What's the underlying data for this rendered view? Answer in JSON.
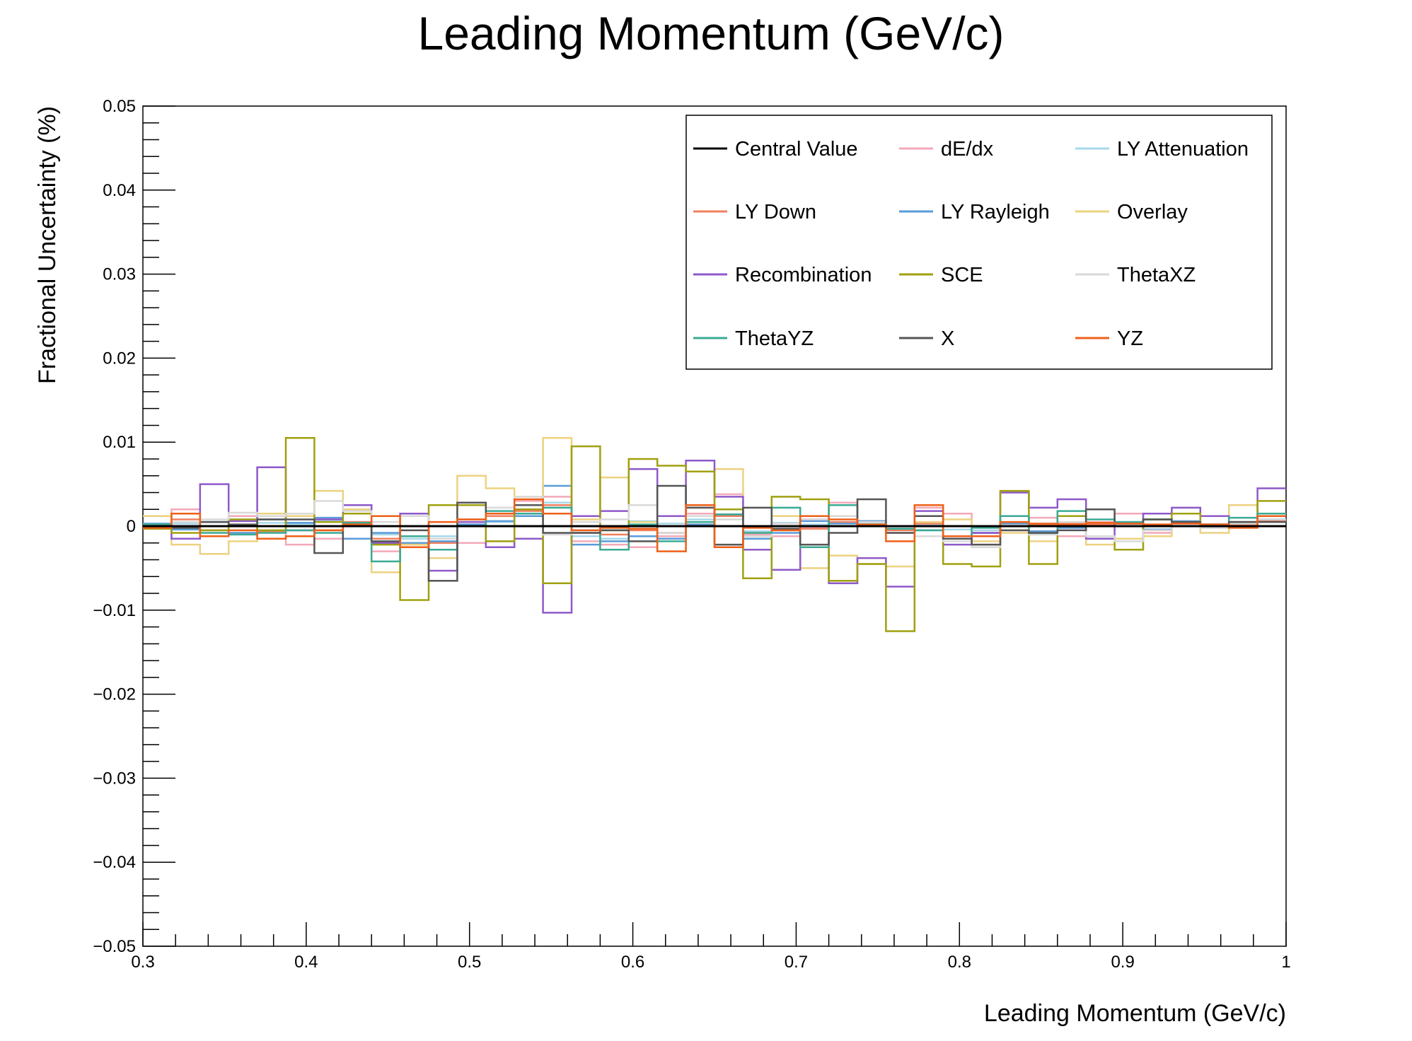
{
  "chart_data": {
    "type": "line",
    "title": "Leading Momentum (GeV/c)",
    "xlabel": "Leading Momentum (GeV/c)",
    "ylabel": "Fractional Uncertainty (%)",
    "xlim": [
      0.3,
      1.0
    ],
    "ylim": [
      -0.05,
      0.05
    ],
    "x_ticks": [
      0.3,
      0.4,
      0.5,
      0.6,
      0.7,
      0.8,
      0.9,
      1.0
    ],
    "x_tick_labels": [
      "0.3",
      "0.4",
      "0.5",
      "0.6",
      "0.7",
      "0.8",
      "0.9",
      "1"
    ],
    "y_ticks": [
      -0.05,
      -0.04,
      -0.03,
      -0.02,
      -0.01,
      0,
      0.01,
      0.02,
      0.03,
      0.04,
      0.05
    ],
    "y_tick_labels": [
      "−0.05",
      "−0.04",
      "−0.03",
      "−0.02",
      "−0.01",
      "0",
      "0.01",
      "0.02",
      "0.03",
      "0.04",
      "0.05"
    ],
    "grid": false,
    "legend_position": "top-right",
    "bin_edges": [
      0.3,
      0.3175,
      0.335,
      0.3525,
      0.37,
      0.3875,
      0.405,
      0.4225,
      0.44,
      0.4575,
      0.475,
      0.4925,
      0.51,
      0.5275,
      0.545,
      0.5625,
      0.58,
      0.5975,
      0.615,
      0.6325,
      0.65,
      0.6675,
      0.685,
      0.7025,
      0.72,
      0.7375,
      0.755,
      0.7725,
      0.79,
      0.8075,
      0.825,
      0.8425,
      0.86,
      0.8775,
      0.895,
      0.9125,
      0.93,
      0.9475,
      0.965,
      0.9825,
      1.0
    ],
    "series": [
      {
        "name": "Central Value",
        "color": "#000000",
        "values": [
          0,
          0,
          0,
          0,
          0,
          0,
          0,
          0,
          0,
          0,
          0,
          0,
          0,
          0,
          0,
          0,
          0,
          0,
          0,
          0,
          0,
          0,
          0,
          0,
          0,
          0,
          0,
          0,
          0,
          0,
          0,
          0,
          0,
          0,
          0,
          0,
          0,
          0,
          0,
          0
        ]
      },
      {
        "name": "dE/dx",
        "color": "#f4a9b8",
        "values": [
          0.0002,
          0.002,
          0.0005,
          0.0012,
          -0.0005,
          -0.0022,
          -0.0015,
          0.0005,
          -0.003,
          -0.0022,
          -0.002,
          -0.002,
          -0.0018,
          0.003,
          0.0035,
          -0.0018,
          -0.0022,
          -0.0025,
          -0.0012,
          0.0015,
          0.0038,
          -0.001,
          -0.0012,
          -0.0002,
          0.0028,
          0.0005,
          -0.0008,
          0.0022,
          0.0015,
          -0.0022,
          -0.0005,
          0.001,
          -0.0012,
          0.0005,
          0.0015,
          -0.0008,
          0.0003,
          0.0002,
          0.0002,
          0.0015
        ]
      },
      {
        "name": "LY Attenuation",
        "color": "#a6d8ea",
        "values": [
          0.0002,
          0.0003,
          0.0005,
          0.0008,
          0.0004,
          0.0002,
          0.0006,
          0.0004,
          -0.001,
          -0.0015,
          -0.0012,
          0.0002,
          0.0005,
          0.0012,
          0.0028,
          -0.0012,
          -0.0015,
          0.0006,
          0.0003,
          0.0008,
          0.0012,
          -0.0006,
          0.0004,
          0.0002,
          0.0005,
          0.0003,
          -0.0003,
          0.0002,
          -0.0004,
          -0.0005,
          0.0005,
          0.0002,
          0.0004,
          0.0002,
          0.0003,
          0.0002,
          0.0004,
          0.0002,
          0.0003,
          0.0006
        ]
      },
      {
        "name": "LY Down",
        "color": "#f08060",
        "values": [
          -0.0003,
          0.0008,
          -0.0005,
          -0.0008,
          -0.0006,
          -0.0005,
          -0.0005,
          0.0005,
          -0.0015,
          -0.0025,
          -0.002,
          0.0008,
          0.0012,
          0.0018,
          0.0025,
          -0.0008,
          -0.001,
          -0.0005,
          -0.0008,
          0.0002,
          0.0012,
          -0.0008,
          -0.0005,
          -0.0003,
          0.0005,
          0.0006,
          -0.0005,
          0.0003,
          -0.0015,
          -0.0008,
          0.0003,
          0.0002,
          0.0003,
          0.0002,
          0.0003,
          0.0002,
          0.0003,
          0.0002,
          0.0002,
          0.0006
        ]
      },
      {
        "name": "LY Rayleigh",
        "color": "#5a9bd8",
        "values": [
          0.0003,
          -0.0004,
          0.0005,
          -0.0008,
          0.0008,
          0.0004,
          0.001,
          -0.0015,
          -0.0008,
          -0.002,
          -0.0018,
          0.0002,
          0.0006,
          0.0012,
          0.0048,
          -0.0022,
          -0.0018,
          -0.0012,
          -0.0015,
          0.0002,
          0.0014,
          -0.0015,
          -0.0008,
          0.0006,
          0.0003,
          0.0006,
          -0.0003,
          -0.0005,
          -0.0012,
          -0.0008,
          0.0003,
          -0.0006,
          -0.0002,
          0.0004,
          0.0005,
          -0.0004,
          0.0006,
          0.0002,
          0.0004,
          0.0008
        ]
      },
      {
        "name": "Overlay",
        "color": "#ecd280",
        "values": [
          0.0012,
          -0.0022,
          -0.0033,
          -0.0018,
          0.0015,
          0.0012,
          0.0042,
          0.002,
          -0.0055,
          -0.0022,
          -0.0038,
          0.006,
          0.0045,
          0.0035,
          0.0105,
          0.0008,
          0.0058,
          0.0005,
          0.0012,
          0.0012,
          0.0068,
          -0.0008,
          0.0012,
          -0.005,
          -0.0035,
          -0.0045,
          -0.0048,
          0.0005,
          0.0008,
          -0.0018,
          -0.0008,
          -0.0018,
          0.0012,
          -0.0022,
          -0.0015,
          -0.0012,
          0.0005,
          -0.0008,
          0.0025,
          0.0012
        ]
      },
      {
        "name": "Recombination",
        "color": "#8e59c9",
        "values": [
          -0.0002,
          -0.0015,
          0.005,
          0.0006,
          0.007,
          -0.0005,
          0.0008,
          0.0025,
          -0.002,
          0.0015,
          -0.0053,
          0.0005,
          -0.0025,
          -0.0015,
          -0.0103,
          0.0012,
          0.0018,
          0.0068,
          0.0012,
          0.0078,
          0.0035,
          -0.0028,
          -0.0052,
          0.0008,
          -0.0068,
          -0.0038,
          -0.0072,
          0.0018,
          -0.0022,
          -0.0008,
          0.004,
          0.0022,
          0.0032,
          -0.0015,
          0.0003,
          0.0015,
          0.0022,
          0.0012,
          0.0005,
          0.0045
        ]
      },
      {
        "name": "SCE",
        "color": "#a0a010",
        "values": [
          -0.0003,
          -0.0008,
          -0.0005,
          0.0008,
          -0.0005,
          0.0105,
          0.0005,
          0.0015,
          -0.0022,
          -0.0088,
          0.0025,
          0.0025,
          -0.0018,
          0.002,
          -0.0068,
          0.0095,
          -0.0005,
          0.008,
          0.0072,
          0.0065,
          0.002,
          -0.0062,
          0.0035,
          0.0032,
          -0.0065,
          -0.0045,
          -0.0125,
          0.0012,
          -0.0045,
          -0.0048,
          0.0042,
          -0.0045,
          0.0012,
          -0.0012,
          -0.0028,
          0.0008,
          0.0015,
          -0.0002,
          0.0005,
          0.003
        ]
      },
      {
        "name": "ThetaXZ",
        "color": "#d9d9d9",
        "values": [
          0.0002,
          0.0005,
          0.0008,
          0.0016,
          0.0012,
          0.0015,
          0.003,
          0.0018,
          0.0005,
          0.0012,
          -0.0015,
          0.0008,
          0.0022,
          0.0035,
          -0.001,
          0.0005,
          0.0008,
          0.0025,
          -0.0008,
          0.0012,
          0.0008,
          -0.0012,
          0.0003,
          0.0008,
          0.0012,
          0.0005,
          -0.0003,
          -0.0012,
          -0.0018,
          -0.0025,
          -0.0005,
          -0.001,
          0.0005,
          -0.0012,
          -0.0018,
          -0.0005,
          0.0003,
          -0.0002,
          0.0003,
          0.0008
        ]
      },
      {
        "name": "ThetaYZ",
        "color": "#3aaa94",
        "values": [
          0.0002,
          -0.0002,
          -0.0008,
          -0.001,
          -0.0008,
          -0.0005,
          -0.0008,
          0.0004,
          -0.0042,
          -0.0012,
          -0.0028,
          0,
          0.0018,
          0.0015,
          0.0022,
          -0.0005,
          -0.0028,
          0.0002,
          -0.0018,
          0.0005,
          0.0014,
          -0.0008,
          0.0022,
          -0.0025,
          0.0025,
          0.0002,
          -0.0003,
          -0.0005,
          -0.0012,
          -0.0002,
          0.0012,
          -0.0008,
          0.0018,
          0.0008,
          0.0005,
          0.0008,
          0.0005,
          0.0002,
          0.001,
          0.0015
        ]
      },
      {
        "name": "X",
        "color": "#555555",
        "values": [
          -0.0002,
          -0.0002,
          0.0005,
          0.0002,
          0.0008,
          0.0008,
          -0.0032,
          0.0002,
          -0.0018,
          -0.0005,
          -0.0065,
          0.0028,
          0.0015,
          0.0025,
          -0.0008,
          -0.0008,
          -0.0005,
          -0.0018,
          0.0048,
          0.0022,
          -0.0022,
          0.0022,
          -0.0003,
          -0.0022,
          -0.0008,
          0.0032,
          -0.0008,
          0.0012,
          -0.0015,
          -0.0022,
          -0.0005,
          -0.0008,
          -0.0005,
          0.002,
          0.0003,
          0.0008,
          0.0005,
          0.0002,
          0.0005,
          0.0005
        ]
      },
      {
        "name": "YZ",
        "color": "#ee6018",
        "values": [
          -0.0002,
          0.0015,
          -0.0012,
          -0.0005,
          -0.0015,
          -0.0012,
          -0.0005,
          0.0002,
          0.0012,
          -0.0025,
          0.0005,
          0.0008,
          0.0015,
          0.0032,
          0.0015,
          -0.0005,
          -0.0002,
          -0.0003,
          -0.003,
          0.0025,
          -0.0025,
          -0.0002,
          -0.0005,
          0.0012,
          0.0008,
          0.0002,
          -0.0018,
          0.0025,
          -0.0012,
          -0.0012,
          0.0005,
          0.0003,
          0.0002,
          0.0004,
          0.0003,
          0.0002,
          0.0003,
          0.0002,
          -0.0002,
          0.0012
        ]
      }
    ]
  }
}
